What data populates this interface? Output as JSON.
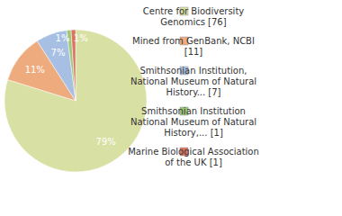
{
  "chart_data": {
    "type": "pie",
    "categories": [
      "Centre for Biodiversity Genomics [76]",
      "Mined from GenBank, NCBI [11]",
      "Smithsonian Institution, National Museum of Natural History... [7]",
      "Smithsonian Institution National Museum of Natural History,... [1]",
      "Marine Biological Association of the UK [1]"
    ],
    "values": [
      79,
      11,
      7,
      1,
      1
    ],
    "value_labels": [
      "79%",
      "11%",
      "7%",
      "1%",
      "1%"
    ],
    "colors": [
      "#d9e0a3",
      "#eeab7e",
      "#a6bfe3",
      "#9cc878",
      "#da7460"
    ],
    "data_labels": true,
    "legend": "right"
  }
}
